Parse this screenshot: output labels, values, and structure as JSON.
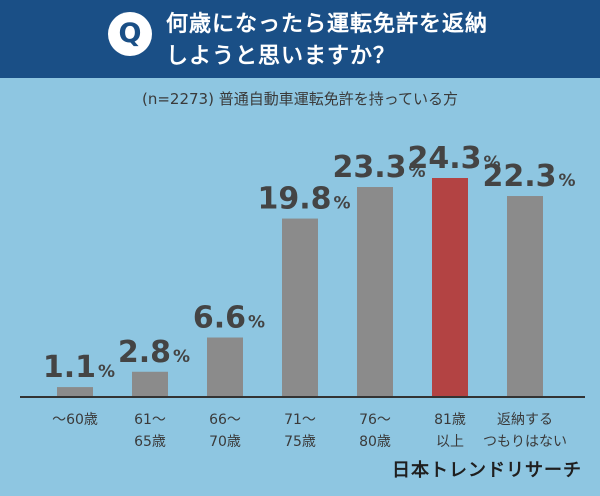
{
  "header": {
    "badge": "Q",
    "question_line1": "何歳になったら運転免許を返納",
    "question_line2": "しようと思いますか？"
  },
  "chart_data": {
    "type": "bar",
    "title": "何歳になったら運転免許を返納しようと思いますか？",
    "subtitle": "(n=2273) 普通自動車運転免許を持っている方",
    "unit": "%",
    "categories": [
      [
        "〜60歳"
      ],
      [
        "61〜",
        "65歳"
      ],
      [
        "66〜",
        "70歳"
      ],
      [
        "71〜",
        "75歳"
      ],
      [
        "76〜",
        "80歳"
      ],
      [
        "81歳",
        "以上"
      ],
      [
        "返納する",
        "つもりはない"
      ]
    ],
    "values": [
      1.1,
      2.8,
      6.6,
      19.8,
      23.3,
      24.3,
      22.3
    ],
    "value_labels": [
      "1.1",
      "2.8",
      "6.6",
      "19.8",
      "23.3",
      "24.3",
      "22.3"
    ],
    "ylim": [
      0,
      24.3
    ],
    "highlight_index": 5,
    "colors": {
      "bar": "#8b8b8b",
      "highlight": "#b34343",
      "axis": "#333333",
      "label": "#444444"
    },
    "grid": false,
    "xlabel": "",
    "ylabel": ""
  },
  "brand": "日本トレンドリサーチ"
}
